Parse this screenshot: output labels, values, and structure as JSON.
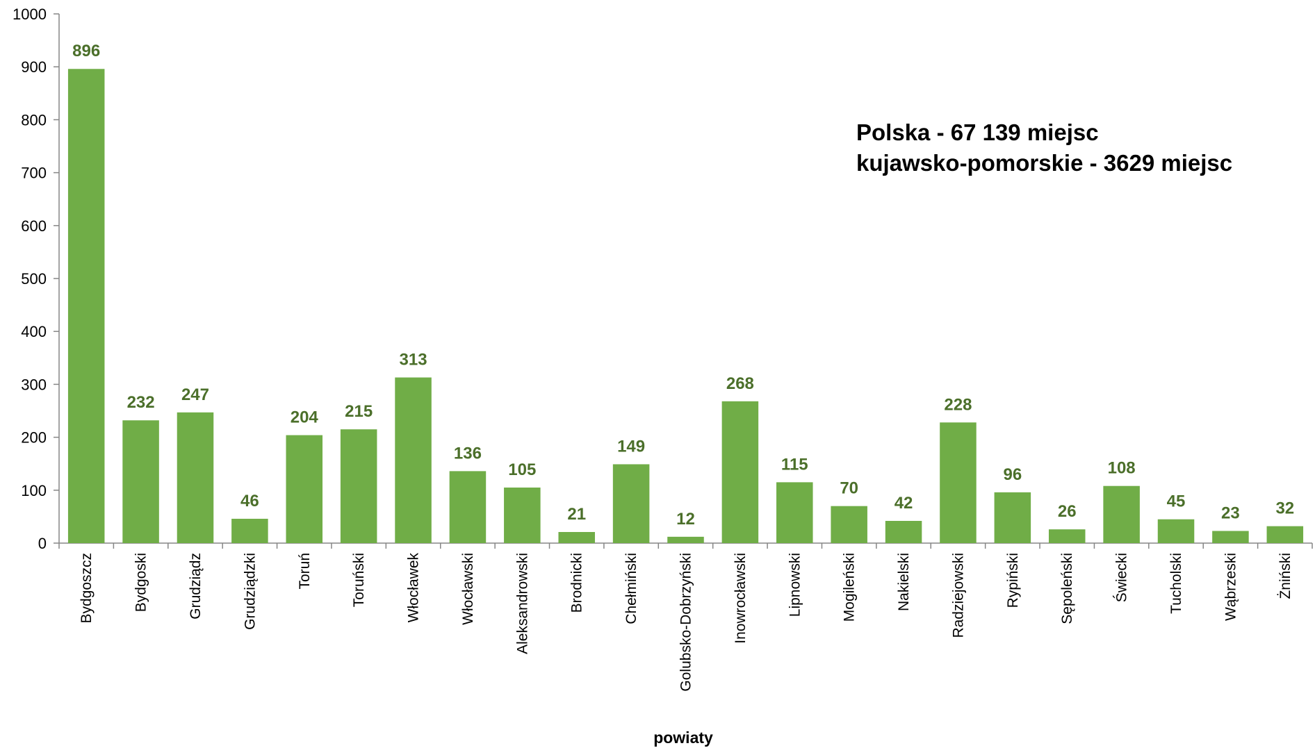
{
  "chart_data": {
    "type": "bar",
    "categories": [
      "Bydgoszcz",
      "Bydgoski",
      "Grudziądz",
      "Grudziądzki",
      "Toruń",
      "Toruński",
      "Włocławek",
      "Włocławski",
      "Aleksandrowski",
      "Brodnicki",
      "Chełmiński",
      "Golubsko-Dobrzyński",
      "Inowrocławski",
      "Lipnowski",
      "Mogileński",
      "Nakielski",
      "Radziejowski",
      "Rypiński",
      "Sępoleński",
      "Świecki",
      "Tucholski",
      "Wąbrzeski",
      "Żniński"
    ],
    "values": [
      896,
      232,
      247,
      46,
      204,
      215,
      313,
      136,
      105,
      21,
      149,
      12,
      268,
      115,
      70,
      42,
      228,
      96,
      26,
      108,
      45,
      23,
      32
    ],
    "xlabel": "powiaty",
    "ylabel": "",
    "ylim": [
      0,
      1000
    ],
    "yticks": [
      0,
      100,
      200,
      300,
      400,
      500,
      600,
      700,
      800,
      900,
      1000
    ],
    "grid": false,
    "legend": "none",
    "annotations": [
      "Polska - 67 139 miejsc",
      "kujawsko-pomorskie - 3629 miejsc"
    ],
    "colors": {
      "bar": "#70ad47",
      "data_label": "#4b6f2a",
      "axis": "#868686"
    }
  }
}
